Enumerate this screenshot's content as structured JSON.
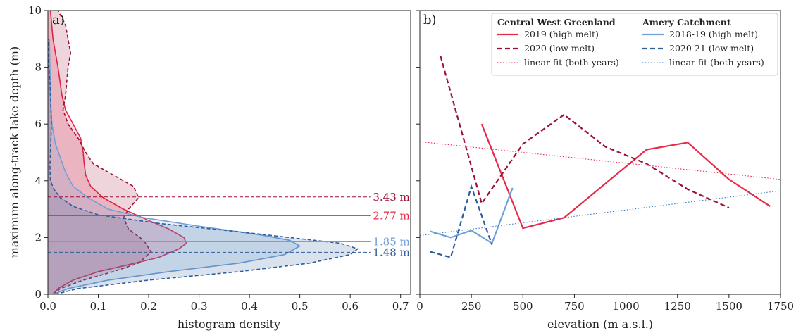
{
  "chart_data": [
    {
      "type": "area",
      "panel_label": "a)",
      "xlabel": "histogram density",
      "ylabel": "maximum along-track lake depth (m)",
      "xlim": [
        0,
        0.72
      ],
      "ylim": [
        0,
        10
      ],
      "xticks": [
        "0.0",
        "0.1",
        "0.2",
        "0.3",
        "0.4",
        "0.5",
        "0.6",
        "0.7"
      ],
      "yticks": [
        "0",
        "2",
        "4",
        "6",
        "8",
        "10"
      ],
      "colors": {
        "cwg_2019": "#e8294a",
        "cwg_2020": "#9e1035",
        "amery_2018": "#6fa0d8",
        "amery_2020": "#2f5d9a"
      },
      "series": [
        {
          "key": "cwg_2019",
          "style": "solid",
          "fill": true,
          "depth": [
            0,
            0.2,
            0.5,
            0.8,
            1.0,
            1.3,
            1.6,
            1.8,
            2.0,
            2.3,
            2.6,
            3.0,
            3.4,
            3.8,
            4.2,
            4.6,
            5.0,
            5.5,
            6.0,
            6.5,
            7.0,
            8.0,
            9.0,
            10.0
          ],
          "density": [
            0.01,
            0.02,
            0.05,
            0.1,
            0.15,
            0.22,
            0.26,
            0.275,
            0.27,
            0.24,
            0.2,
            0.15,
            0.11,
            0.085,
            0.075,
            0.072,
            0.07,
            0.065,
            0.05,
            0.035,
            0.028,
            0.02,
            0.01,
            0.005
          ]
        },
        {
          "key": "cwg_2020",
          "style": "dashed",
          "fill": true,
          "depth": [
            0,
            0.2,
            0.5,
            0.8,
            1.1,
            1.5,
            1.9,
            2.3,
            2.7,
            3.0,
            3.4,
            3.8,
            4.2,
            4.6,
            5.0,
            5.5,
            6.0,
            6.5,
            7.0,
            8.0,
            8.5,
            9.0,
            9.5,
            10.0
          ],
          "density": [
            0.01,
            0.025,
            0.07,
            0.13,
            0.18,
            0.205,
            0.19,
            0.16,
            0.15,
            0.16,
            0.18,
            0.17,
            0.13,
            0.09,
            0.075,
            0.06,
            0.04,
            0.03,
            0.035,
            0.04,
            0.045,
            0.04,
            0.035,
            0.02
          ]
        },
        {
          "key": "amery_2018",
          "style": "solid",
          "fill": true,
          "depth": [
            0,
            0.2,
            0.5,
            0.8,
            1.1,
            1.4,
            1.7,
            1.9,
            2.1,
            2.4,
            2.7,
            3.0,
            3.4,
            3.8,
            4.3,
            4.8,
            5.3,
            6.0,
            7.0,
            8.0,
            9.0
          ],
          "density": [
            0.01,
            0.04,
            0.12,
            0.24,
            0.38,
            0.47,
            0.5,
            0.48,
            0.42,
            0.3,
            0.19,
            0.12,
            0.08,
            0.05,
            0.035,
            0.025,
            0.015,
            0.008,
            0.005,
            0.004,
            0.003
          ]
        },
        {
          "key": "amery_2020",
          "style": "dashed",
          "fill": true,
          "depth": [
            0,
            0.2,
            0.5,
            0.8,
            1.1,
            1.4,
            1.6,
            1.8,
            2.0,
            2.2,
            2.5,
            2.8,
            3.1,
            3.4,
            3.7,
            4.0,
            4.5,
            5.0,
            5.5,
            6.0,
            6.5,
            7.0,
            7.5,
            8.0,
            8.5,
            9.0
          ],
          "density": [
            0.015,
            0.06,
            0.2,
            0.38,
            0.52,
            0.6,
            0.615,
            0.58,
            0.48,
            0.38,
            0.22,
            0.1,
            0.05,
            0.025,
            0.012,
            0.005,
            0.004,
            0.005,
            0.006,
            0.007,
            0.006,
            0.005,
            0.004,
            0.002,
            0.001,
            0.0
          ]
        }
      ],
      "mean_lines": [
        {
          "key": "cwg_2020",
          "depth": 3.43,
          "label": "3.43 m",
          "style": "dashed"
        },
        {
          "key": "cwg_2019",
          "depth": 2.77,
          "label": "2.77 m",
          "style": "solid"
        },
        {
          "key": "amery_2018",
          "depth": 1.85,
          "label": "1.85 m",
          "style": "solid"
        },
        {
          "key": "amery_2020",
          "depth": 1.48,
          "label": "1.48 m",
          "style": "dashed"
        }
      ]
    },
    {
      "type": "line",
      "panel_label": "b)",
      "xlabel": "elevation (m a.s.l.)",
      "xlim": [
        0,
        1750
      ],
      "ylim": [
        0,
        10
      ],
      "xticks": [
        "0",
        "250",
        "500",
        "750",
        "1000",
        "1250",
        "1500",
        "1750"
      ],
      "grid": false,
      "legend_placement": "top-right",
      "legend": {
        "col1_title": "Central West Greenland",
        "col2_title": "Amery Catchment",
        "col1": [
          {
            "key": "cwg_2019",
            "label": "2019 (high melt)",
            "style": "solid"
          },
          {
            "key": "cwg_2020",
            "label": "2020 (low melt)",
            "style": "dashed"
          },
          {
            "key": "cwg_fit",
            "label": "linear fit (both years)",
            "style": "dotted"
          }
        ],
        "col2": [
          {
            "key": "amery_2018",
            "label": "2018-19 (high melt)",
            "style": "solid"
          },
          {
            "key": "amery_2020",
            "label": "2020-21 (low melt)",
            "style": "dashed"
          },
          {
            "key": "amery_fit",
            "label": "linear fit (both years)",
            "style": "dotted"
          }
        ]
      },
      "colors": {
        "cwg_2019": "#e8294a",
        "cwg_2020": "#9e1035",
        "cwg_fit": "#e8294a",
        "amery_2018": "#6fa0d8",
        "amery_2020": "#2f5d9a",
        "amery_fit": "#3c78c8"
      },
      "series": [
        {
          "key": "cwg_2019",
          "style": "solid",
          "x": [
            300,
            500,
            700,
            900,
            1100,
            1300,
            1500,
            1700
          ],
          "y": [
            6.0,
            2.33,
            2.7,
            3.9,
            5.1,
            5.35,
            4.05,
            3.1
          ]
        },
        {
          "key": "cwg_2020",
          "style": "dashed",
          "x": [
            100,
            300,
            500,
            700,
            900,
            1100,
            1300,
            1500
          ],
          "y": [
            8.4,
            3.2,
            5.3,
            6.33,
            5.2,
            4.6,
            3.7,
            3.05
          ]
        },
        {
          "key": "amery_2018",
          "style": "solid",
          "x": [
            50,
            150,
            250,
            350,
            450
          ],
          "y": [
            2.22,
            2.0,
            2.25,
            1.8,
            3.75
          ]
        },
        {
          "key": "amery_2020",
          "style": "dashed",
          "x": [
            50,
            150,
            250,
            350
          ],
          "y": [
            1.5,
            1.3,
            3.8,
            1.75
          ]
        },
        {
          "key": "cwg_fit",
          "style": "dotted",
          "x": [
            0,
            1750
          ],
          "y": [
            5.38,
            4.05
          ]
        },
        {
          "key": "amery_fit",
          "style": "dotted",
          "x": [
            0,
            1750
          ],
          "y": [
            2.07,
            3.65
          ]
        }
      ]
    }
  ]
}
